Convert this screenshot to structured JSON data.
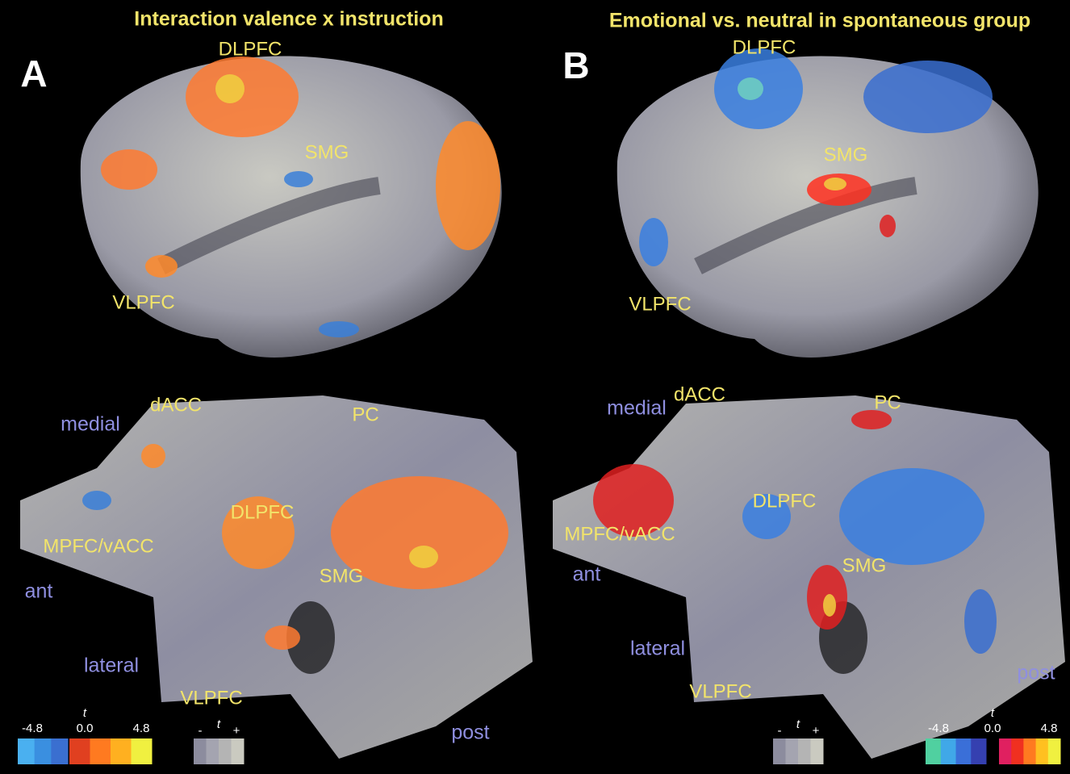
{
  "panels": [
    {
      "letter": "A",
      "title": "Interaction valence x instruction",
      "lateral_view": {
        "regions": [
          "DLPFC",
          "SMG",
          "VLPFC"
        ]
      },
      "flat_map": {
        "regions": [
          "dACC",
          "PC",
          "DLPFC",
          "MPFC/vACC",
          "SMG",
          "VLPFC"
        ],
        "orientation": [
          "medial",
          "ant",
          "lateral",
          "post"
        ]
      },
      "t_scale": {
        "min": "-4.8",
        "symbol": "t",
        "zero": "0.0",
        "max": "4.8"
      },
      "curvature_scale": {
        "minus": "-",
        "symbol": "t",
        "plus": "+"
      }
    },
    {
      "letter": "B",
      "title": "Emotional vs. neutral in spontaneous group",
      "lateral_view": {
        "regions": [
          "DLPFC",
          "SMG",
          "VLPFC"
        ]
      },
      "flat_map": {
        "regions": [
          "dACC",
          "PC",
          "DLPFC",
          "MPFC/vACC",
          "SMG",
          "VLPFC"
        ],
        "orientation": [
          "medial",
          "ant",
          "lateral",
          "post"
        ]
      },
      "t_scale": {
        "min": "-4.8",
        "symbol": "t",
        "zero": "0.0",
        "max": "4.8"
      },
      "curvature_scale": {
        "minus": "-",
        "symbol": "t",
        "plus": "+"
      }
    }
  ]
}
